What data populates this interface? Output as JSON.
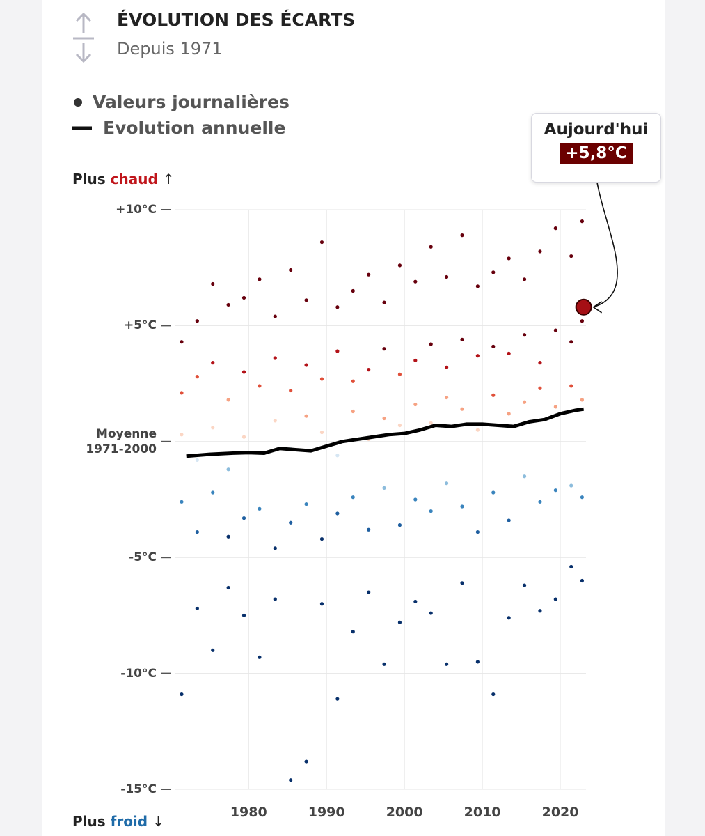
{
  "header": {
    "title": "ÉVOLUTION DES ÉCARTS",
    "subtitle": "Depuis 1971"
  },
  "chart_data": {
    "type": "scatter",
    "warm_label": {
      "prefix": "Plus",
      "word": "chaud"
    },
    "cold_label": {
      "prefix": "Plus",
      "word": "froid"
    },
    "xlim": [
      1970.6,
      2023.3
    ],
    "xticks": [
      1980,
      1990,
      2000,
      2010,
      2020
    ],
    "ylim": [
      -15,
      10
    ],
    "yticks": [
      {
        "value": 10,
        "label": "+10°C"
      },
      {
        "value": 5,
        "label": "+5°C"
      },
      {
        "value": 0,
        "label": "Moyenne 1971-2000"
      },
      {
        "value": -5,
        "label": "-5°C"
      },
      {
        "value": -10,
        "label": "-10°C"
      },
      {
        "value": -15,
        "label": "-15°C"
      }
    ],
    "grid": true,
    "palette": [
      "#08306b",
      "#1f5fa0",
      "#3a84bd",
      "#8cbcdc",
      "#d6e6f3",
      "#fbd6c4",
      "#f6a283",
      "#e0503a",
      "#b31218",
      "#67000d"
    ],
    "series": [
      {
        "name": "Valeurs journalières",
        "type": "scatter",
        "color": "#444444",
        "x": [
          1971.4,
          1971.4,
          1971.4,
          1971.4,
          1971.4,
          1973.4,
          1973.4,
          1973.4,
          1973.4,
          1973.4,
          1975.4,
          1975.4,
          1975.4,
          1975.4,
          1975.4,
          1977.4,
          1977.4,
          1977.4,
          1977.4,
          1977.4,
          1979.4,
          1979.4,
          1979.4,
          1979.4,
          1979.4,
          1981.4,
          1981.4,
          1981.4,
          1981.4,
          1981.4,
          1983.4,
          1983.4,
          1983.4,
          1983.4,
          1983.4,
          1985.4,
          1985.4,
          1985.4,
          1985.4,
          1985.4,
          1987.4,
          1987.4,
          1987.4,
          1987.4,
          1987.4,
          1989.4,
          1989.4,
          1989.4,
          1989.4,
          1989.4,
          1991.4,
          1991.4,
          1991.4,
          1991.4,
          1991.4,
          1993.4,
          1993.4,
          1993.4,
          1993.4,
          1993.4,
          1995.4,
          1995.4,
          1995.4,
          1995.4,
          1995.4,
          1997.4,
          1997.4,
          1997.4,
          1997.4,
          1997.4,
          1999.4,
          1999.4,
          1999.4,
          1999.4,
          1999.4,
          2001.4,
          2001.4,
          2001.4,
          2001.4,
          2001.4,
          2003.4,
          2003.4,
          2003.4,
          2003.4,
          2003.4,
          2005.4,
          2005.4,
          2005.4,
          2005.4,
          2005.4,
          2007.4,
          2007.4,
          2007.4,
          2007.4,
          2007.4,
          2009.4,
          2009.4,
          2009.4,
          2009.4,
          2009.4,
          2011.4,
          2011.4,
          2011.4,
          2011.4,
          2011.4,
          2013.4,
          2013.4,
          2013.4,
          2013.4,
          2013.4,
          2015.4,
          2015.4,
          2015.4,
          2015.4,
          2015.4,
          2017.4,
          2017.4,
          2017.4,
          2017.4,
          2017.4,
          2019.4,
          2019.4,
          2019.4,
          2019.4,
          2019.4,
          2021.4,
          2021.4,
          2021.4,
          2021.4,
          2021.4,
          2022.8,
          2022.8,
          2022.8,
          2022.8,
          2022.8
        ],
        "values": [
          4.3,
          2.1,
          0.3,
          -2.6,
          -10.9,
          5.2,
          2.8,
          -0.8,
          -3.9,
          -7.2,
          6.8,
          3.4,
          0.6,
          -2.2,
          -9.0,
          5.9,
          1.8,
          -1.2,
          -4.1,
          -6.3,
          6.2,
          3.0,
          0.2,
          -3.3,
          -7.5,
          7.0,
          2.4,
          -0.5,
          -2.9,
          -9.3,
          5.4,
          3.6,
          0.9,
          -4.6,
          -6.8,
          7.4,
          2.2,
          -0.3,
          -3.5,
          -14.6,
          6.1,
          3.3,
          1.1,
          -2.7,
          -13.8,
          8.6,
          2.7,
          0.4,
          -4.2,
          -7.0,
          5.8,
          3.9,
          -0.6,
          -3.1,
          -11.1,
          6.5,
          2.6,
          1.3,
          -2.4,
          -8.2,
          7.2,
          3.1,
          0.1,
          -3.8,
          -6.5,
          6.0,
          4.0,
          1.0,
          -2.0,
          -9.6,
          7.6,
          2.9,
          0.7,
          -3.6,
          -7.8,
          6.9,
          3.5,
          1.6,
          -2.5,
          -6.9,
          8.4,
          4.2,
          0.8,
          -3.0,
          -7.4,
          7.1,
          3.2,
          1.9,
          -1.8,
          -9.6,
          8.9,
          4.4,
          1.4,
          -2.8,
          -6.1,
          6.7,
          3.7,
          0.5,
          -3.9,
          -9.5,
          7.3,
          4.1,
          2.0,
          -2.2,
          -10.9,
          7.9,
          3.8,
          1.2,
          -3.4,
          -7.6,
          7.0,
          4.6,
          1.7,
          -1.5,
          -6.2,
          8.2,
          3.4,
          2.3,
          -2.6,
          -7.3,
          9.2,
          4.8,
          1.5,
          -2.1,
          -6.8,
          8.0,
          4.3,
          2.4,
          -1.9,
          -5.4,
          9.5,
          5.2,
          1.8,
          -2.4,
          -6.0
        ]
      },
      {
        "name": "Evolution annuelle",
        "type": "line",
        "color": "#000000",
        "x": [
          1972,
          1975,
          1978,
          1980,
          1982,
          1984,
          1986,
          1988,
          1990,
          1992,
          1994,
          1996,
          1998,
          2000,
          2002,
          2004,
          2006,
          2008,
          2010,
          2012,
          2014,
          2016,
          2018,
          2020,
          2022,
          2023
        ],
        "values": [
          -0.63,
          -0.55,
          -0.5,
          -0.48,
          -0.5,
          -0.3,
          -0.35,
          -0.4,
          -0.2,
          0.0,
          0.1,
          0.2,
          0.3,
          0.35,
          0.5,
          0.7,
          0.65,
          0.75,
          0.75,
          0.7,
          0.65,
          0.85,
          0.95,
          1.2,
          1.35,
          1.4
        ]
      }
    ],
    "annotation": {
      "title": "Aujourd'hui",
      "x": 2023,
      "value": 5.8,
      "value_label": "+5,8°C",
      "color": "#6b0000"
    }
  }
}
